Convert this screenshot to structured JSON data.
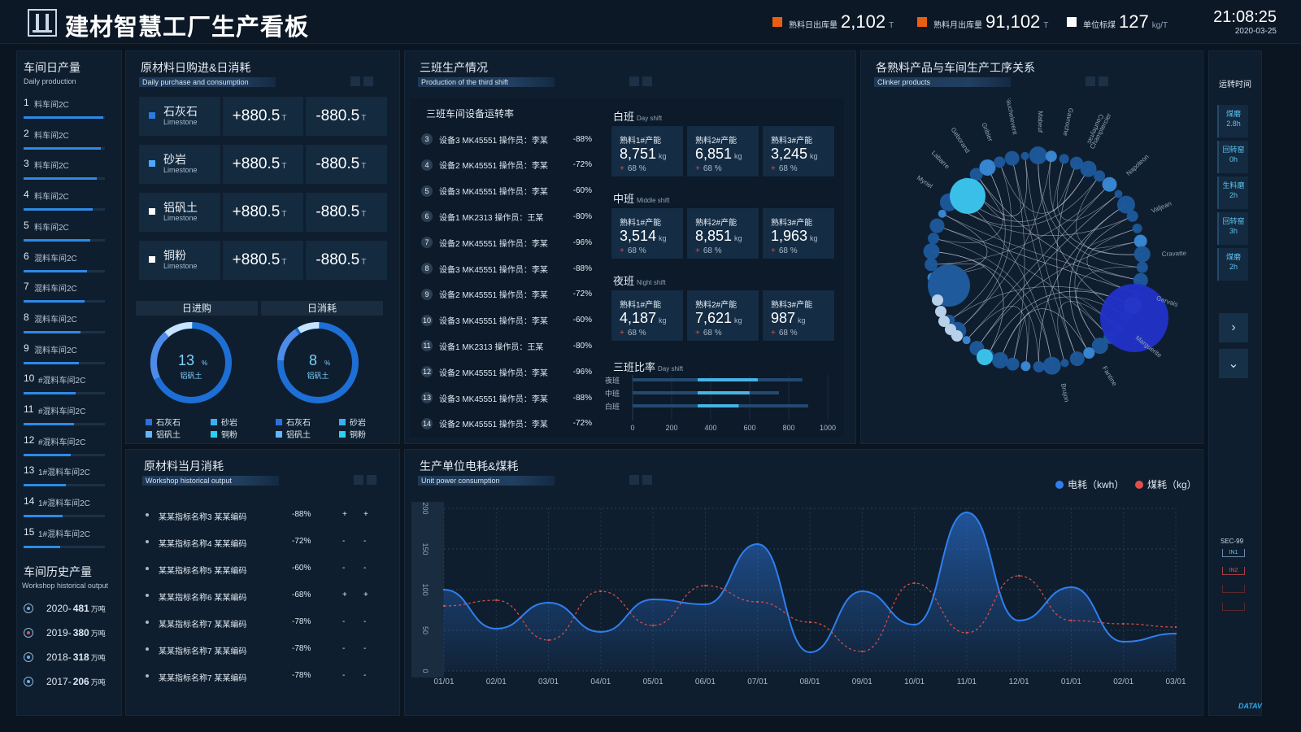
{
  "header": {
    "title": "建材智慧工厂生产看板",
    "kpis": [
      {
        "label": "熟料日出库量",
        "value": "2,102",
        "unit": "T",
        "color": "#e8600f"
      },
      {
        "label": "熟料月出库量",
        "value": "91,102",
        "unit": "T",
        "color": "#e8600f"
      },
      {
        "label": "单位标煤",
        "value": "127",
        "unit": "kg/T",
        "color": "#ffffff"
      }
    ],
    "time": "21:08:25",
    "date": "2020-03-25"
  },
  "workshop": {
    "title": "车间日产量",
    "subtitle": "Daily production",
    "items": [
      {
        "no": "1",
        "label": "料车间2C",
        "fill": 0.98
      },
      {
        "no": "2",
        "label": "料车间2C",
        "fill": 0.95
      },
      {
        "no": "3",
        "label": "料车间2C",
        "fill": 0.9
      },
      {
        "no": "4",
        "label": "料车间2C",
        "fill": 0.85
      },
      {
        "no": "5",
        "label": "料车间2C",
        "fill": 0.82
      },
      {
        "no": "6",
        "label": "混料车间2C",
        "fill": 0.78
      },
      {
        "no": "7",
        "label": "混料车间2C",
        "fill": 0.75
      },
      {
        "no": "8",
        "label": "混料车间2C",
        "fill": 0.7
      },
      {
        "no": "9",
        "label": "混料车间2C",
        "fill": 0.68
      },
      {
        "no": "10",
        "label": "#混料车间2C",
        "fill": 0.64
      },
      {
        "no": "11",
        "label": "#混料车间2C",
        "fill": 0.62
      },
      {
        "no": "12",
        "label": "#混料车间2C",
        "fill": 0.58
      },
      {
        "no": "13",
        "label": "1#混料车间2C",
        "fill": 0.52
      },
      {
        "no": "14",
        "label": "1#混料车间2C",
        "fill": 0.48
      },
      {
        "no": "15",
        "label": "1#混料车间2C",
        "fill": 0.45
      }
    ],
    "history_title": "车间历史产量",
    "history_subtitle": "Workshop historical output",
    "history": [
      {
        "year": "2020-",
        "value": "481",
        "unit": "万吨",
        "color": "#5fb0ff"
      },
      {
        "year": "2019-",
        "value": "380",
        "unit": "万吨",
        "color": "#e0504a"
      },
      {
        "year": "2018-",
        "value": "318",
        "unit": "万吨",
        "color": "#5fb0ff"
      },
      {
        "year": "2017-",
        "value": "206",
        "unit": "万吨",
        "color": "#5fb0ff"
      }
    ]
  },
  "raw": {
    "title": "原材料日购进&日消耗",
    "subtitle": "Daily purchase and consumption",
    "rows": [
      {
        "name": "石灰石",
        "sub": "Limestone",
        "in": "+880.5",
        "out": "-880.5",
        "unit": "T",
        "color": "#2e7ae0"
      },
      {
        "name": "砂岩",
        "sub": "Limestone",
        "in": "+880.5",
        "out": "-880.5",
        "unit": "T",
        "color": "#4fa8ff"
      },
      {
        "name": "铝矾土",
        "sub": "Limestone",
        "in": "+880.5",
        "out": "-880.5",
        "unit": "T",
        "color": "#ffffff"
      },
      {
        "name": "铜粉",
        "sub": "Limestone",
        "in": "+880.5",
        "out": "-880.5",
        "unit": "T",
        "color": "#ffffff"
      }
    ],
    "tab_in": "日进购",
    "tab_out": "日消耗",
    "gauges": [
      {
        "value": "13",
        "unit": "%",
        "label": "铝矾土",
        "pct": 0.13
      },
      {
        "value": "8",
        "unit": "%",
        "label": "铝矾土",
        "pct": 0.08
      }
    ],
    "legend": [
      {
        "label": "石灰石",
        "color": "#2e6fe0"
      },
      {
        "label": "砂岩",
        "color": "#38b0f0"
      },
      {
        "label": "铝矾土",
        "color": "#5fb8ff"
      },
      {
        "label": "铜粉",
        "color": "#2cd0f0"
      }
    ]
  },
  "shift": {
    "title": "三班生产情况",
    "subtitle": "Production of the third shift",
    "eq_title": "三班车间设备运转率",
    "equipment": [
      {
        "no": "3",
        "text": "设备3 MK45551 操作员：李某",
        "pct": "-88%"
      },
      {
        "no": "4",
        "text": "设备2 MK45551 操作员：李某",
        "pct": "-72%"
      },
      {
        "no": "5",
        "text": "设备3 MK45551 操作员：李某",
        "pct": "-60%"
      },
      {
        "no": "6",
        "text": "设备1 MK2313 操作员：王某",
        "pct": "-80%"
      },
      {
        "no": "7",
        "text": "设备2 MK45551 操作员：李某",
        "pct": "-96%"
      },
      {
        "no": "8",
        "text": "设备3 MK45551 操作员：李某",
        "pct": "-88%"
      },
      {
        "no": "9",
        "text": "设备2 MK45551 操作员：李某",
        "pct": "-72%"
      },
      {
        "no": "10",
        "text": "设备3 MK45551 操作员：李某",
        "pct": "-60%"
      },
      {
        "no": "11",
        "text": "设备1 MK2313 操作员：王某",
        "pct": "-80%"
      },
      {
        "no": "12",
        "text": "设备2 MK45551 操作员：李某",
        "pct": "-96%"
      },
      {
        "no": "13",
        "text": "设备3 MK45551 操作员：李某",
        "pct": "-88%"
      },
      {
        "no": "14",
        "text": "设备2 MK45551 操作员：李某",
        "pct": "-72%"
      }
    ],
    "groups": [
      {
        "name": "白班",
        "en": "Day shift",
        "cards": [
          {
            "label": "熟料1#产能",
            "value": "8,751",
            "unit": "kg",
            "pct": "68 %"
          },
          {
            "label": "熟料2#产能",
            "value": "6,851",
            "unit": "kg",
            "pct": "68 %"
          },
          {
            "label": "熟料3#产能",
            "value": "3,245",
            "unit": "kg",
            "pct": "68 %"
          }
        ]
      },
      {
        "name": "中班",
        "en": "Middle shift",
        "cards": [
          {
            "label": "熟料1#产能",
            "value": "3,514",
            "unit": "kg",
            "pct": "68 %"
          },
          {
            "label": "熟料2#产能",
            "value": "8,851",
            "unit": "kg",
            "pct": "68 %"
          },
          {
            "label": "熟料3#产能",
            "value": "1,963",
            "unit": "kg",
            "pct": "68 %"
          }
        ]
      },
      {
        "name": "夜班",
        "en": "Night shift",
        "cards": [
          {
            "label": "熟料1#产能",
            "value": "4,187",
            "unit": "kg",
            "pct": "68 %"
          },
          {
            "label": "熟料2#产能",
            "value": "7,621",
            "unit": "kg",
            "pct": "68 %"
          },
          {
            "label": "熟料3#产能",
            "value": "987",
            "unit": "kg",
            "pct": "68 %"
          }
        ]
      }
    ],
    "plus": "+",
    "ratio_title": "三班比率",
    "ratio_sub": "Day shift"
  },
  "relation": {
    "title": "各熟料产品与车间生产工序关系",
    "subtitle": "Clinker products",
    "names_right": [
      "Champtercier",
      "Napoleon",
      "Valjean",
      "Cravatte",
      "Gervais",
      "Marguerite",
      "Fantine",
      "Brujon"
    ],
    "names_left": [
      "Myriel",
      "Labarre",
      "Geborand",
      "Gribier",
      "Fauchelevent",
      "Mabeuf",
      "Gavroche",
      "Courfeyrac"
    ]
  },
  "side": {
    "label": "运转时间",
    "items": [
      {
        "name": "煤磨",
        "value": "2.8h"
      },
      {
        "name": "回转窑",
        "value": "0h"
      },
      {
        "name": "生料磨",
        "value": "2h"
      },
      {
        "name": "回转窑",
        "value": "3h"
      },
      {
        "name": "煤磨",
        "value": "2h"
      }
    ],
    "next": "›",
    "down": "⌄",
    "sec": "SEC-99",
    "tags": [
      "IN1",
      "IN2"
    ]
  },
  "monthly": {
    "title": "原材料当月消耗",
    "subtitle": "Workshop historical output",
    "rows": [
      {
        "name": "某某指标名称3 某某编码",
        "pct": "-88%",
        "a": "+",
        "b": "+"
      },
      {
        "name": "某某指标名称4 某某编码",
        "pct": "-72%",
        "a": "-",
        "b": "-"
      },
      {
        "name": "某某指标名称5 某某编码",
        "pct": "-60%",
        "a": "-",
        "b": "-"
      },
      {
        "name": "某某指标名称6 某某编码",
        "pct": "-68%",
        "a": "+",
        "b": "+"
      },
      {
        "name": "某某指标名称7 某某编码",
        "pct": "-78%",
        "a": "-",
        "b": "-"
      },
      {
        "name": "某某指标名称7 某某编码",
        "pct": "-78%",
        "a": "-",
        "b": "-"
      },
      {
        "name": "某某指标名称7 某某编码",
        "pct": "-78%",
        "a": "-",
        "b": "-"
      }
    ]
  },
  "energy": {
    "title": "生产单位电耗&煤耗",
    "subtitle": "Unit power consumption",
    "legend_power": "电耗（kwh）",
    "legend_coal": "煤耗（kg）"
  },
  "watermark": "DATAV",
  "chart_data": [
    {
      "type": "bar",
      "title": "三班比率",
      "categories": [
        "夜班",
        "中班",
        "白班"
      ],
      "series": [
        {
          "name": "total",
          "values": [
            870,
            750,
            900
          ]
        },
        {
          "name": "part",
          "values": [
            440,
            380,
            300
          ]
        }
      ],
      "ylim": [
        0,
        1000
      ],
      "ticks": [
        "0",
        "200",
        "400",
        "600",
        "800",
        "1000"
      ]
    },
    {
      "type": "line",
      "title": "生产单位电耗&煤耗",
      "categories": [
        "01/01",
        "02/01",
        "03/01",
        "04/01",
        "05/01",
        "06/01",
        "07/01",
        "08/01",
        "09/01",
        "10/01",
        "11/01",
        "12/01",
        "01/01",
        "02/01",
        "03/01"
      ],
      "y_ticks": [
        "0",
        "50",
        "100",
        "150",
        "200"
      ],
      "ylim": [
        0,
        200
      ],
      "series": [
        {
          "name": "电耗（kwh）",
          "color": "#2f7ff0",
          "values": [
            100,
            52,
            84,
            48,
            88,
            82,
            156,
            23,
            98,
            57,
            195,
            62,
            103,
            36,
            46
          ]
        },
        {
          "name": "煤耗（kg）",
          "color": "#e0504a",
          "values": [
            80,
            87,
            38,
            98,
            56,
            105,
            85,
            60,
            24,
            108,
            47,
            117,
            62,
            58,
            54
          ]
        }
      ]
    }
  ]
}
